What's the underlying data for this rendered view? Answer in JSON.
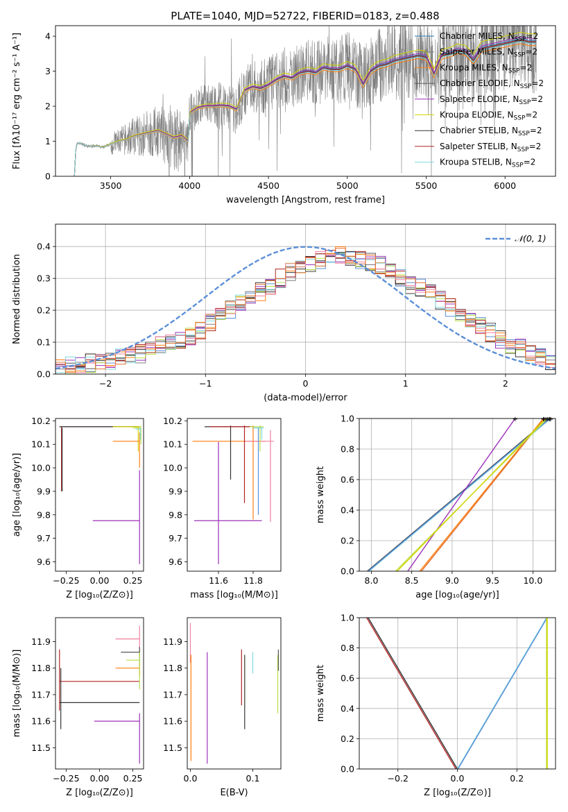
{
  "figure_title": "PLATE=1040, MJD=52722, FIBERID=0183, z=0.488",
  "colors": {
    "Chabrier MILES": "#1f77b4",
    "Salpeter MILES": "#7f7f7f",
    "Kroupa MILES": "#ff7f0e",
    "Chabrier ELODIE": "#555555",
    "Salpeter ELODIE": "#9b30b8",
    "Kroupa ELODIE": "#d4d400",
    "Chabrier STELIB": "#333333",
    "Salpeter STELIB": "#b22222",
    "Kroupa STELIB": "#7fd8e0",
    "extra_pink": "#f080a0",
    "extra_blue": "#5b8fd8",
    "extra_lime": "#b8e04a",
    "extra_orange": "#e07030",
    "gaussian": "#5b8fd8",
    "data": "#808080"
  },
  "legend_spectrum": [
    {
      "prefix": "Chabrier MILES, N",
      "sub": "SSP",
      "suffix": "=2",
      "color_key": "Chabrier MILES"
    },
    {
      "prefix": "Salpeter MILES, N",
      "sub": "SSP",
      "suffix": "=2",
      "color_key": "Salpeter MILES"
    },
    {
      "prefix": "Kroupa MILES, N",
      "sub": "SSP",
      "suffix": "=2",
      "color_key": "Kroupa MILES"
    },
    {
      "prefix": "Chabrier ELODIE, N",
      "sub": "SSP",
      "suffix": "=2",
      "color_key": "Chabrier ELODIE"
    },
    {
      "prefix": "Salpeter ELODIE, N",
      "sub": "SSP",
      "suffix": "=2",
      "color_key": "Salpeter ELODIE"
    },
    {
      "prefix": "Kroupa ELODIE, N",
      "sub": "SSP",
      "suffix": "=2",
      "color_key": "Kroupa ELODIE"
    },
    {
      "prefix": "Chabrier STELIB, N",
      "sub": "SSP",
      "suffix": "=2",
      "color_key": "Chabrier STELIB"
    },
    {
      "prefix": "Salpeter STELIB, N",
      "sub": "SSP",
      "suffix": "=2",
      "color_key": "Salpeter STELIB"
    },
    {
      "prefix": "Kroupa STELIB, N",
      "sub": "SSP",
      "suffix": "=2",
      "color_key": "Kroupa STELIB"
    }
  ],
  "legend_hist": {
    "label": "𝒩(0, 1)"
  },
  "chart_data": [
    {
      "id": "spectrum",
      "type": "line",
      "xlabel": "wavelength [Angstrom, rest frame]",
      "ylabel": "Flux [fλ10⁻¹⁷ erg cm⁻² s⁻¹ A⁻¹]",
      "xlim": [
        3150,
        6320
      ],
      "ylim": [
        0,
        4.3
      ],
      "xticks": [
        3500,
        4000,
        4500,
        5000,
        5500,
        6000
      ],
      "yticks": [
        0,
        1,
        2,
        3,
        4
      ],
      "grid": false,
      "legend_position": "top-right",
      "model_continuum": {
        "x": [
          3270,
          3280,
          3300,
          3330,
          3360,
          3400,
          3450,
          3500,
          3550,
          3600,
          3650,
          3700,
          3750,
          3800,
          3850,
          3900,
          3950,
          3990,
          4000,
          4050,
          4100,
          4150,
          4200,
          4250,
          4300,
          4350,
          4400,
          4450,
          4500,
          4550,
          4600,
          4650,
          4700,
          4750,
          4800,
          4850,
          4900,
          4950,
          5000,
          5050,
          5100,
          5150,
          5200,
          5250,
          5300,
          5350,
          5400,
          5450,
          5500,
          5550,
          5600,
          5650,
          5700,
          5750,
          5800,
          5850,
          5900,
          5950,
          6000,
          6050,
          6100,
          6150,
          6200
        ],
        "y": [
          0,
          0.9,
          0.95,
          0.9,
          0.85,
          0.88,
          0.82,
          0.92,
          1.0,
          1.05,
          1.15,
          1.2,
          1.25,
          1.3,
          1.2,
          1.1,
          1.15,
          1.0,
          1.8,
          1.95,
          2.0,
          2.0,
          2.02,
          2.0,
          1.9,
          2.45,
          2.55,
          2.5,
          2.6,
          2.75,
          2.85,
          2.8,
          2.95,
          3.0,
          2.95,
          3.1,
          3.05,
          3.05,
          3.15,
          3.05,
          2.6,
          3.0,
          3.15,
          3.2,
          3.3,
          3.35,
          3.4,
          3.45,
          3.4,
          2.9,
          3.45,
          3.5,
          3.6,
          3.55,
          3.3,
          3.65,
          3.7,
          3.75,
          3.8,
          3.85,
          3.9,
          3.85,
          3.85
        ]
      },
      "model_offsets": {
        "Chabrier MILES": 0.03,
        "Salpeter MILES": -0.02,
        "Kroupa MILES": -0.12,
        "Chabrier ELODIE": 0.0,
        "Salpeter ELODIE": 0.08,
        "Kroupa ELODIE": 0.22,
        "Chabrier STELIB": -0.04,
        "Salpeter STELIB": 0.0,
        "Kroupa STELIB": -0.05
      }
    },
    {
      "id": "residual-hist",
      "type": "bar",
      "xlabel": "(data-model)/error",
      "ylabel": "Normed distribution",
      "xlim": [
        -2.5,
        2.5
      ],
      "ylim": [
        0,
        0.47
      ],
      "xticks": [
        -2,
        -1,
        0,
        1,
        2
      ],
      "yticks": [
        0.0,
        0.1,
        0.2,
        0.3,
        0.4
      ],
      "grid": true,
      "legend_position": "top-right",
      "bins": [
        -2.5,
        2.5,
        50
      ],
      "hist_profile": [
        0.02,
        0.03,
        0.03,
        0.035,
        0.035,
        0.04,
        0.05,
        0.06,
        0.065,
        0.08,
        0.09,
        0.1,
        0.11,
        0.12,
        0.14,
        0.16,
        0.18,
        0.2,
        0.22,
        0.24,
        0.26,
        0.28,
        0.3,
        0.32,
        0.33,
        0.35,
        0.36,
        0.37,
        0.37,
        0.37,
        0.36,
        0.35,
        0.34,
        0.32,
        0.3,
        0.28,
        0.27,
        0.25,
        0.23,
        0.21,
        0.19,
        0.17,
        0.15,
        0.13,
        0.11,
        0.09,
        0.08,
        0.06,
        0.05,
        0.04
      ],
      "gaussian": {
        "mean": 0,
        "sigma": 1
      }
    },
    {
      "id": "age-vs-Z",
      "type": "scatter",
      "xlabel": "Z [log₁₀(Z/Z⊙)]",
      "ylabel": "age  [log₁₀(age/yr)]",
      "xlim": [
        -0.33,
        0.33
      ],
      "ylim": [
        9.56,
        10.21
      ],
      "xticks": [
        -0.25,
        0.0,
        0.25
      ],
      "xticklabels": [
        "−0.25",
        "0.00",
        "0.25"
      ],
      "yticks": [
        9.6,
        9.7,
        9.8,
        9.9,
        10.0,
        10.1,
        10.2
      ],
      "grid": false,
      "segments": [
        {
          "c": "Salpeter STELIB",
          "h": [
            -0.3,
            0.3,
            10.175
          ],
          "v": [
            -0.285,
            9.9,
            10.175
          ]
        },
        {
          "c": "Chabrier STELIB",
          "h": [
            -0.3,
            0.3,
            10.175
          ],
          "v": [
            -0.28,
            9.9,
            10.17
          ]
        },
        {
          "c": "Kroupa ELODIE",
          "h": [
            0.1,
            0.3,
            10.175
          ],
          "v": [
            0.29,
            10.07,
            10.175
          ]
        },
        {
          "c": "Kroupa MILES",
          "h": [
            0.1,
            0.3,
            10.113
          ],
          "v": [
            0.3,
            10.0,
            10.15
          ]
        },
        {
          "c": "Salpeter ELODIE",
          "h": [
            -0.05,
            0.3,
            9.775
          ],
          "v": [
            0.3,
            9.59,
            9.99
          ]
        },
        {
          "c": "extra_lime",
          "h": [
            0.25,
            0.31,
            10.17
          ],
          "v": [
            0.31,
            10.1,
            10.18
          ]
        },
        {
          "c": "Kroupa STELIB",
          "h": [
            0.27,
            0.31,
            10.165
          ],
          "v": [
            0.305,
            10.12,
            10.17
          ]
        }
      ]
    },
    {
      "id": "age-vs-mass",
      "type": "scatter",
      "xlabel": "mass [log₁₀(M/M⊙)]",
      "ylabel": "",
      "xlim": [
        11.42,
        11.96
      ],
      "ylim": [
        9.56,
        10.21
      ],
      "xticks": [
        11.6,
        11.8
      ],
      "yticks": [
        9.6,
        9.7,
        9.8,
        9.9,
        10.0,
        10.1,
        10.2
      ],
      "grid": false,
      "segments": [
        {
          "c": "Salpeter ELODIE",
          "h": [
            11.46,
            11.85,
            9.775
          ],
          "v": [
            11.6,
            9.59,
            10.11
          ]
        },
        {
          "c": "Kroupa MILES",
          "h": [
            11.45,
            11.87,
            10.113
          ],
          "v": [
            11.8,
            9.78,
            10.18
          ]
        },
        {
          "c": "extra_pink",
          "h": [
            11.75,
            11.92,
            10.113
          ],
          "v": [
            11.9,
            9.77,
            10.16
          ]
        },
        {
          "c": "Chabrier STELIB",
          "h": [
            11.52,
            11.8,
            10.175
          ],
          "v": [
            11.67,
            9.95,
            10.18
          ]
        },
        {
          "c": "Salpeter STELIB",
          "h": [
            11.55,
            11.8,
            10.175
          ],
          "v": [
            11.75,
            9.85,
            10.18
          ]
        },
        {
          "c": "extra_blue",
          "h": [
            11.8,
            11.85,
            10.17
          ],
          "v": [
            11.83,
            9.8,
            10.17
          ]
        },
        {
          "c": "extra_lime",
          "h": [
            11.78,
            11.86,
            10.175
          ],
          "v": [
            11.84,
            10.07,
            10.18
          ]
        },
        {
          "c": "Kroupa STELIB",
          "h": [
            11.8,
            11.86,
            10.17
          ],
          "v": [
            11.85,
            10.12,
            10.17
          ]
        }
      ]
    },
    {
      "id": "massweight-vs-age",
      "type": "line",
      "xlabel": "age  [log₁₀(age/yr)]",
      "ylabel": "mass weight",
      "xlim": [
        7.85,
        10.28
      ],
      "ylim": [
        0,
        1
      ],
      "xticks": [
        8.0,
        8.5,
        9.0,
        9.5,
        10.0
      ],
      "yticks": [
        0.0,
        0.2,
        0.4,
        0.6,
        0.8,
        1.0
      ],
      "grid": true,
      "lines": [
        {
          "c": "Chabrier STELIB",
          "x": [
            7.95,
            10.2
          ]
        },
        {
          "c": "Kroupa STELIB",
          "x": [
            7.97,
            10.22
          ]
        },
        {
          "c": "extra_blue",
          "x": [
            7.96,
            10.21
          ]
        },
        {
          "c": "Salpeter ELODIE",
          "x": [
            8.45,
            9.78
          ]
        },
        {
          "c": "Kroupa MILES",
          "x": [
            8.6,
            10.13
          ]
        },
        {
          "c": "extra_orange",
          "x": [
            8.62,
            10.14
          ]
        },
        {
          "c": "extra_lime",
          "x": [
            8.3,
            10.18
          ]
        },
        {
          "c": "Kroupa ELODIE",
          "x": [
            8.32,
            10.16
          ]
        }
      ]
    },
    {
      "id": "mass-vs-Z",
      "type": "scatter",
      "xlabel": "Z [log₁₀(Z/Z⊙)]",
      "ylabel": "mass [log₁₀(M/M⊙)]",
      "xlim": [
        -0.33,
        0.33
      ],
      "ylim": [
        11.42,
        11.99
      ],
      "xticks": [
        -0.25,
        0.0,
        0.25
      ],
      "xticklabels": [
        "−0.25",
        "0.00",
        "0.25"
      ],
      "yticks": [
        11.5,
        11.6,
        11.7,
        11.8,
        11.9
      ],
      "grid": false,
      "segments": [
        {
          "c": "Salpeter STELIB",
          "h": [
            -0.3,
            0.3,
            11.75
          ],
          "v": [
            -0.3,
            11.64,
            11.87
          ]
        },
        {
          "c": "Chabrier STELIB",
          "h": [
            -0.3,
            0.3,
            11.67
          ],
          "v": [
            -0.29,
            11.57,
            11.8
          ]
        },
        {
          "c": "Salpeter ELODIE",
          "h": [
            -0.04,
            0.3,
            11.6
          ],
          "v": [
            0.3,
            11.44,
            11.63
          ]
        },
        {
          "c": "extra_pink",
          "h": [
            0.12,
            0.3,
            11.91
          ],
          "v": [
            0.3,
            11.84,
            11.96
          ]
        },
        {
          "c": "Chabrier ELODIE",
          "h": [
            0.16,
            0.3,
            11.86
          ],
          "v": [
            0.3,
            11.8,
            11.88
          ]
        },
        {
          "c": "Kroupa MILES",
          "h": [
            0.12,
            0.3,
            11.8
          ],
          "v": [
            0.3,
            11.77,
            11.82
          ]
        },
        {
          "c": "extra_lime",
          "h": [
            0.2,
            0.3,
            11.83
          ],
          "v": [
            0.3,
            11.72,
            11.86
          ]
        }
      ]
    },
    {
      "id": "mass-vs-ebv",
      "type": "scatter",
      "xlabel": "E(B-V)",
      "ylabel": "",
      "xlim": [
        -0.005,
        0.145
      ],
      "ylim": [
        11.42,
        11.99
      ],
      "xticks": [
        0.0,
        0.1
      ],
      "xticklabels": [
        "0.0",
        "0.1"
      ],
      "yticks": [
        11.5,
        11.6,
        11.7,
        11.8,
        11.9
      ],
      "grid": false,
      "segments": [
        {
          "c": "extra_pink",
          "v": [
            0.0,
            11.82,
            11.97
          ]
        },
        {
          "c": "Kroupa MILES",
          "v": [
            0.001,
            11.45,
            11.85
          ]
        },
        {
          "c": "Salpeter ELODIE",
          "v": [
            0.027,
            11.44,
            11.86
          ]
        },
        {
          "c": "Salpeter STELIB",
          "v": [
            0.082,
            11.66,
            11.87
          ]
        },
        {
          "c": "Chabrier STELIB",
          "v": [
            0.087,
            11.57,
            11.85
          ]
        },
        {
          "c": "Kroupa STELIB",
          "v": [
            0.1,
            11.78,
            11.86
          ]
        },
        {
          "c": "extra_lime",
          "v": [
            0.14,
            11.63,
            11.85
          ]
        },
        {
          "c": "Chabrier ELODIE",
          "v": [
            0.141,
            11.79,
            11.87
          ]
        }
      ]
    },
    {
      "id": "massweight-vs-Z",
      "type": "line",
      "xlabel": "Z [log₁₀(Z/Z⊙)]",
      "ylabel": "mass weight",
      "xlim": [
        -0.33,
        0.33
      ],
      "ylim": [
        0,
        1
      ],
      "xticks": [
        -0.2,
        0.0,
        0.2
      ],
      "xticklabels": [
        "−0.2",
        "0.0",
        "0.2"
      ],
      "yticks": [
        0.0,
        0.2,
        0.4,
        0.6,
        0.8,
        1.0
      ],
      "grid": true,
      "lines": [
        {
          "c": "Salpeter STELIB",
          "x0": -0.305,
          "x1": -0.005
        },
        {
          "c": "Chabrier STELIB",
          "x0": -0.3,
          "x1": 0.0
        },
        {
          "c": "Kroupa STELIB",
          "x0": 0.0,
          "x1": 0.3
        },
        {
          "c": "extra_blue",
          "x0": 0.002,
          "x1": 0.302
        }
      ],
      "verticals": [
        {
          "c": "extra_lime",
          "x": 0.3
        },
        {
          "c": "Kroupa ELODIE",
          "x": 0.302
        }
      ]
    }
  ]
}
